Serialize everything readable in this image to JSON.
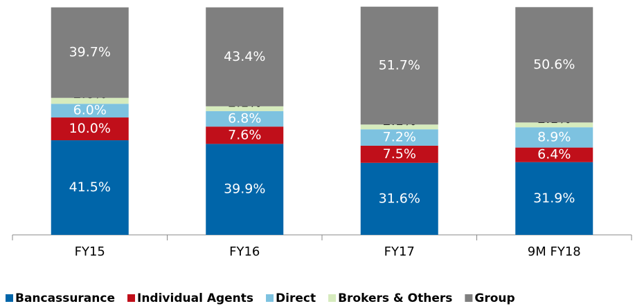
{
  "chart_data": {
    "type": "stacked_bar",
    "categories": [
      "FY15",
      "FY16",
      "FY17",
      "9M FY18"
    ],
    "ylim": [
      0,
      100
    ],
    "series": [
      {
        "name": "Bancassurance",
        "color": "#0065a9",
        "values": [
          41.5,
          39.9,
          31.6,
          31.9
        ],
        "value_labels": [
          "41.5%",
          "39.9%",
          "31.6%",
          "31.9%"
        ]
      },
      {
        "name": "Individual Agents",
        "color": "#c00f1a",
        "values": [
          10.0,
          7.6,
          7.5,
          6.4
        ],
        "value_labels": [
          "10.0%",
          "7.6%",
          "7.5%",
          "6.4%"
        ]
      },
      {
        "name": "Direct",
        "color": "#7dc2e0",
        "values": [
          6.0,
          6.8,
          7.2,
          8.9
        ],
        "value_labels": [
          "6.0%",
          "6.8%",
          "7.2%",
          "8.9%"
        ]
      },
      {
        "name": "Brokers & Others",
        "color": "#d6ebbd",
        "values": [
          2.6,
          2.1,
          2.1,
          2.1
        ],
        "value_labels": [
          "2.6%",
          "2.1%",
          "2.1%",
          "2.1%"
        ]
      },
      {
        "name": "Group",
        "color": "#7f7f7f",
        "values": [
          39.7,
          43.4,
          51.7,
          50.6
        ],
        "value_labels": [
          "39.7%",
          "43.4%",
          "51.7%",
          "50.6%"
        ]
      }
    ]
  }
}
